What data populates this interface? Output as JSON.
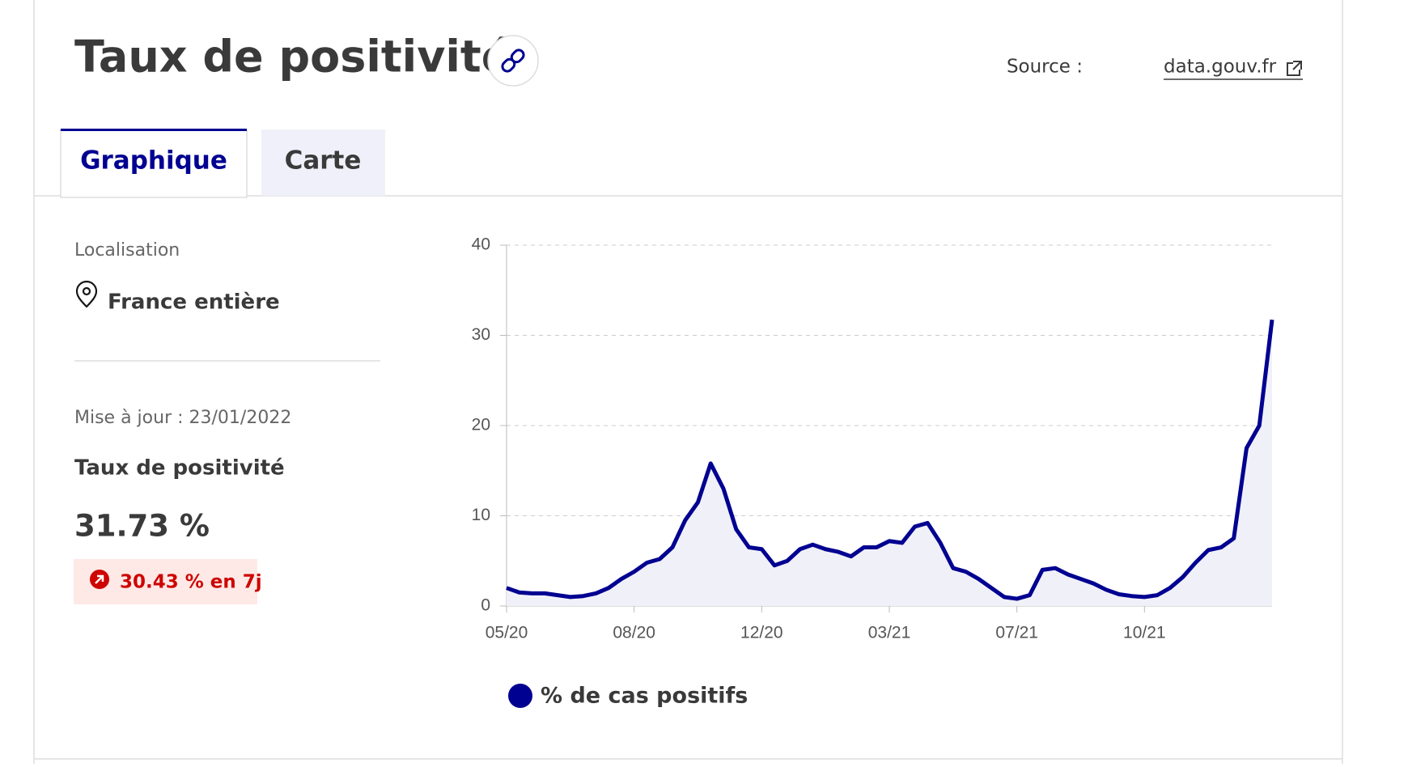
{
  "header": {
    "title": "Taux de positivité",
    "source_label": "Source :",
    "source_link": "data.gouv.fr"
  },
  "tabs": [
    "Graphique",
    "Carte"
  ],
  "sidebar": {
    "location_label": "Localisation",
    "location": "France entière",
    "updated": "Mise à jour : 23/01/2022",
    "indicator": "Taux de positivité",
    "value": "31.73 %",
    "change": "30.43 % en 7j"
  },
  "chart_data": {
    "type": "line",
    "categories": [
      "05/20",
      null,
      null,
      null,
      null,
      null,
      null,
      null,
      null,
      null,
      "08/20",
      null,
      null,
      null,
      null,
      null,
      null,
      null,
      null,
      null,
      "12/20",
      null,
      null,
      null,
      null,
      null,
      null,
      null,
      null,
      null,
      "03/21",
      null,
      null,
      null,
      null,
      null,
      null,
      null,
      null,
      null,
      "07/21",
      null,
      null,
      null,
      null,
      null,
      null,
      null,
      null,
      null,
      "10/21",
      null,
      null,
      null,
      null,
      null,
      null,
      null,
      null,
      null,
      null
    ],
    "series": [
      {
        "name": "% de cas positifs",
        "color": "#000091",
        "fill": "#f0f0f8",
        "values": [
          2.0,
          1.5,
          1.4,
          1.4,
          1.2,
          1.0,
          1.1,
          1.4,
          2.0,
          3.0,
          3.8,
          4.8,
          5.2,
          6.5,
          9.5,
          11.5,
          15.8,
          13.0,
          8.5,
          6.5,
          6.3,
          4.5,
          5.0,
          6.3,
          6.8,
          6.3,
          6.0,
          5.5,
          6.5,
          6.5,
          7.2,
          7.0,
          8.8,
          9.2,
          7.0,
          4.2,
          3.8,
          3.0,
          2.0,
          1.0,
          0.8,
          1.2,
          4.0,
          4.2,
          3.5,
          3.0,
          2.5,
          1.8,
          1.3,
          1.1,
          1.0,
          1.2,
          2.0,
          3.2,
          4.8,
          6.2,
          6.5,
          7.5,
          17.5,
          20.0,
          31.73
        ]
      }
    ],
    "ylim": [
      0,
      40
    ],
    "yticks": [
      0,
      10,
      20,
      30,
      40
    ],
    "grid": true
  }
}
